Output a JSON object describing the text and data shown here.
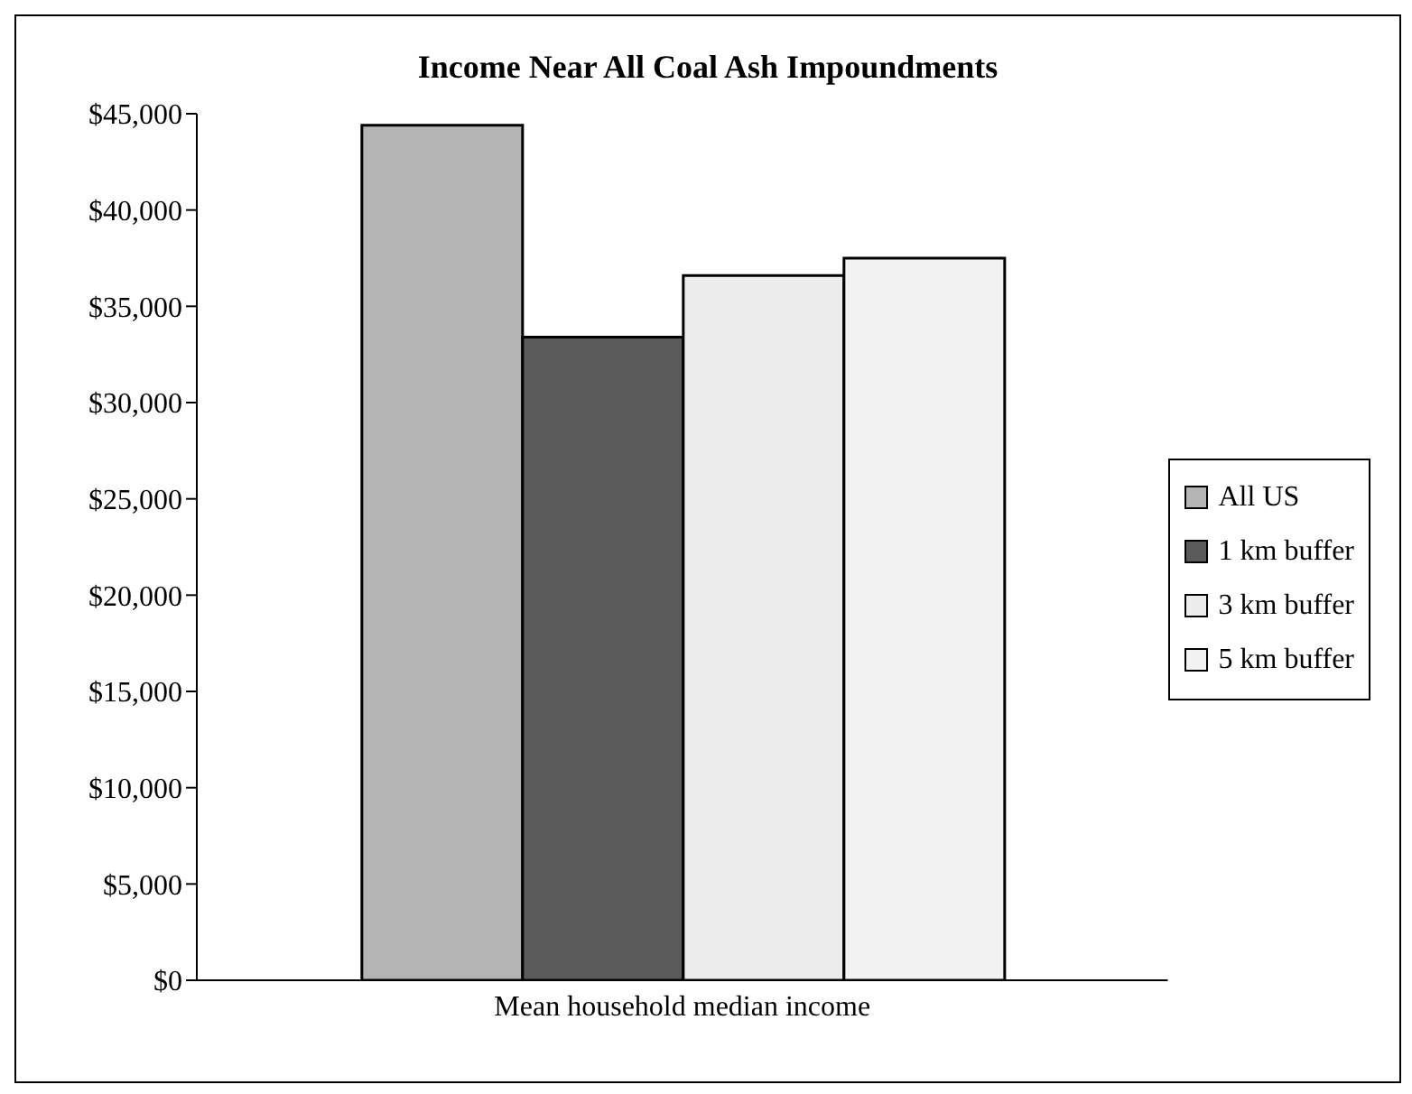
{
  "chart_data": {
    "type": "bar",
    "title": "Income Near All Coal Ash Impoundments",
    "categories": [
      "Mean household median income"
    ],
    "series": [
      {
        "name": "All US",
        "color": "#b4b4b4",
        "values": [
          44400
        ]
      },
      {
        "name": "1 km buffer",
        "color": "#5a5a5a",
        "values": [
          33400
        ]
      },
      {
        "name": "3 km buffer",
        "color": "#ececec",
        "values": [
          36600
        ]
      },
      {
        "name": "5 km buffer",
        "color": "#f2f2f2",
        "values": [
          37500
        ]
      }
    ],
    "ylim": [
      0,
      45000
    ],
    "yticks": [
      {
        "value": 0,
        "label": "$0"
      },
      {
        "value": 5000,
        "label": "$5,000"
      },
      {
        "value": 10000,
        "label": "$10,000"
      },
      {
        "value": 15000,
        "label": "$15,000"
      },
      {
        "value": 20000,
        "label": "$20,000"
      },
      {
        "value": 25000,
        "label": "$25,000"
      },
      {
        "value": 30000,
        "label": "$30,000"
      },
      {
        "value": 35000,
        "label": "$35,000"
      },
      {
        "value": 40000,
        "label": "$40,000"
      },
      {
        "value": 45000,
        "label": "$45,000"
      }
    ],
    "grid": false,
    "legend": "right"
  }
}
